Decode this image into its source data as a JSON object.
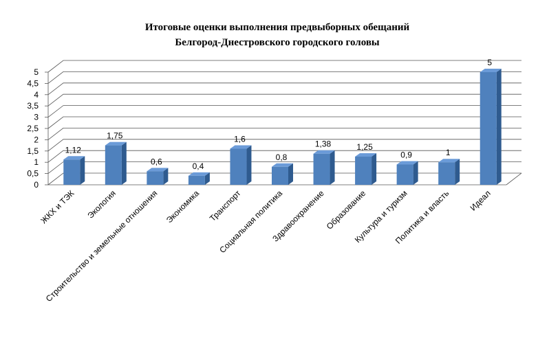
{
  "chart_data": {
    "type": "bar",
    "title_lines": [
      "Итоговые оценки выполнения предвыборных обещаний",
      "Белгород-Днестровского городского головы"
    ],
    "categories": [
      "ЖКХ и ТЭК",
      "Экология",
      "Строительство и земельные отношения",
      "Экономика",
      "Транспорт",
      "Социальная политика",
      "Здравоохранение",
      "Образование",
      "Культура и туризм",
      "Политика и власть",
      "Идеал"
    ],
    "values": [
      1.12,
      1.75,
      0.6,
      0.4,
      1.6,
      0.8,
      1.38,
      1.25,
      0.9,
      1,
      5
    ],
    "data_labels": [
      "1,12",
      "1,75",
      "0,6",
      "0,4",
      "1,6",
      "0,8",
      "1,38",
      "1,25",
      "0,9",
      "1",
      "5"
    ],
    "y_ticks": [
      "0",
      "0,5",
      "1",
      "1,5",
      "2",
      "2,5",
      "3",
      "3,5",
      "4",
      "4,5",
      "5"
    ],
    "ylim": [
      0,
      5
    ],
    "grid": true,
    "legend": "none",
    "bar_color": "#4F81BD",
    "bar_top_color": "#6B9BD8",
    "bar_side_color": "#2F5B8F",
    "grid_color": "#555555"
  }
}
